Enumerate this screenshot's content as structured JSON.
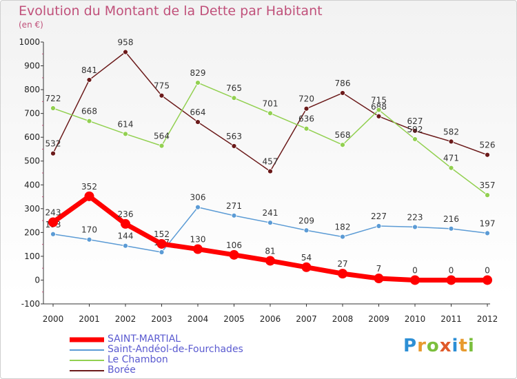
{
  "header": {
    "title": "Evolution du Montant de la Dette par Habitant",
    "subtitle": "(en €)"
  },
  "brand": {
    "text": "Proxiti",
    "colors": [
      "#2d8fd5",
      "#e89a2e",
      "#7bbf3d",
      "#e05a2a",
      "#2d8fd5",
      "#e89a2e",
      "#7bbf3d"
    ]
  },
  "chart_data": {
    "type": "line",
    "x": [
      "2000",
      "2001",
      "2002",
      "2003",
      "2004",
      "2005",
      "2006",
      "2007",
      "2008",
      "2009",
      "2010",
      "2011",
      "2012"
    ],
    "ylim": [
      -100,
      1000
    ],
    "yticks": [
      "-100",
      "0",
      "100",
      "200",
      "300",
      "400",
      "500",
      "600",
      "700",
      "800",
      "900",
      "1000"
    ],
    "grid": false,
    "legend_position": "bottom-left",
    "series": [
      {
        "name": "Borée",
        "color": "#6b1a1a",
        "text_color": "#5a5ad0",
        "width": 1.5,
        "marker": 3.5,
        "values": [
          532,
          841,
          958,
          775,
          664,
          563,
          457,
          720,
          786,
          688,
          627,
          582,
          526
        ],
        "labels": [
          "532",
          "841",
          "958",
          "775",
          "664",
          "563",
          "457",
          "720",
          "786",
          "688",
          "627",
          "582",
          "526"
        ]
      },
      {
        "name": "Le Chambon",
        "color": "#92d050",
        "text_color": "#5a5ad0",
        "width": 1.5,
        "marker": 3.5,
        "values": [
          722,
          668,
          614,
          564,
          829,
          765,
          701,
          636,
          568,
          715,
          592,
          471,
          357
        ],
        "labels": [
          "722",
          "668",
          "614",
          "564",
          "829",
          "765",
          "701",
          "636",
          "568",
          "715",
          "592",
          "471",
          "357"
        ]
      },
      {
        "name": "Saint-Andéol-de-Fourchades",
        "color": "#5b9bd5",
        "text_color": "#5a5ad0",
        "width": 1.5,
        "marker": 3.5,
        "values": [
          193,
          170,
          144,
          117,
          306,
          271,
          241,
          209,
          182,
          227,
          223,
          216,
          197
        ],
        "labels": [
          "193",
          "170",
          "144",
          "117",
          "306",
          "271",
          "241",
          "209",
          "182",
          "227",
          "223",
          "216",
          "197"
        ]
      },
      {
        "name": "SAINT-MARTIAL",
        "color": "#ff0000",
        "text_color": "#5a5ad0",
        "width": 7,
        "marker": 7,
        "values": [
          243,
          352,
          236,
          152,
          130,
          106,
          81,
          54,
          27,
          7,
          0,
          0,
          0
        ],
        "labels": [
          "243",
          "352",
          "236",
          "152",
          "130",
          "106",
          "81",
          "54",
          "27",
          "7",
          "0",
          "0",
          "0"
        ]
      }
    ],
    "legend_order": [
      "SAINT-MARTIAL",
      "Saint-Andéol-de-Fourchades",
      "Le Chambon",
      "Borée"
    ]
  }
}
